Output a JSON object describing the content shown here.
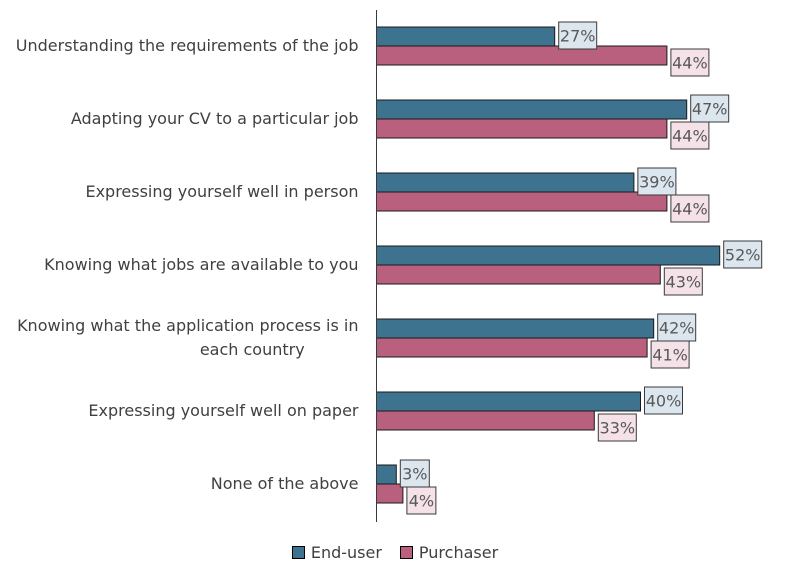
{
  "chart_data": {
    "type": "bar",
    "orientation": "horizontal",
    "categories": [
      [
        "Understanding the requirements of the job"
      ],
      [
        "Adapting your CV to a particular job"
      ],
      [
        "Expressing yourself well in person"
      ],
      [
        "Knowing what jobs are available to you"
      ],
      [
        "Knowing what the application process is in",
        "each country"
      ],
      [
        "Expressing yourself well on paper"
      ],
      [
        "None of the above"
      ]
    ],
    "series": [
      {
        "name": "End-user",
        "color": "#3e7390",
        "label_bg": "#dce6ee",
        "values": [
          27,
          47,
          39,
          52,
          42,
          40,
          3
        ]
      },
      {
        "name": "Purchaser",
        "color": "#b9607f",
        "label_bg": "#f5e1e8",
        "values": [
          44,
          44,
          44,
          43,
          41,
          33,
          4
        ]
      }
    ],
    "value_suffix": "%",
    "xlim": [
      0,
      60
    ],
    "grid": false,
    "legend_position": "bottom"
  }
}
